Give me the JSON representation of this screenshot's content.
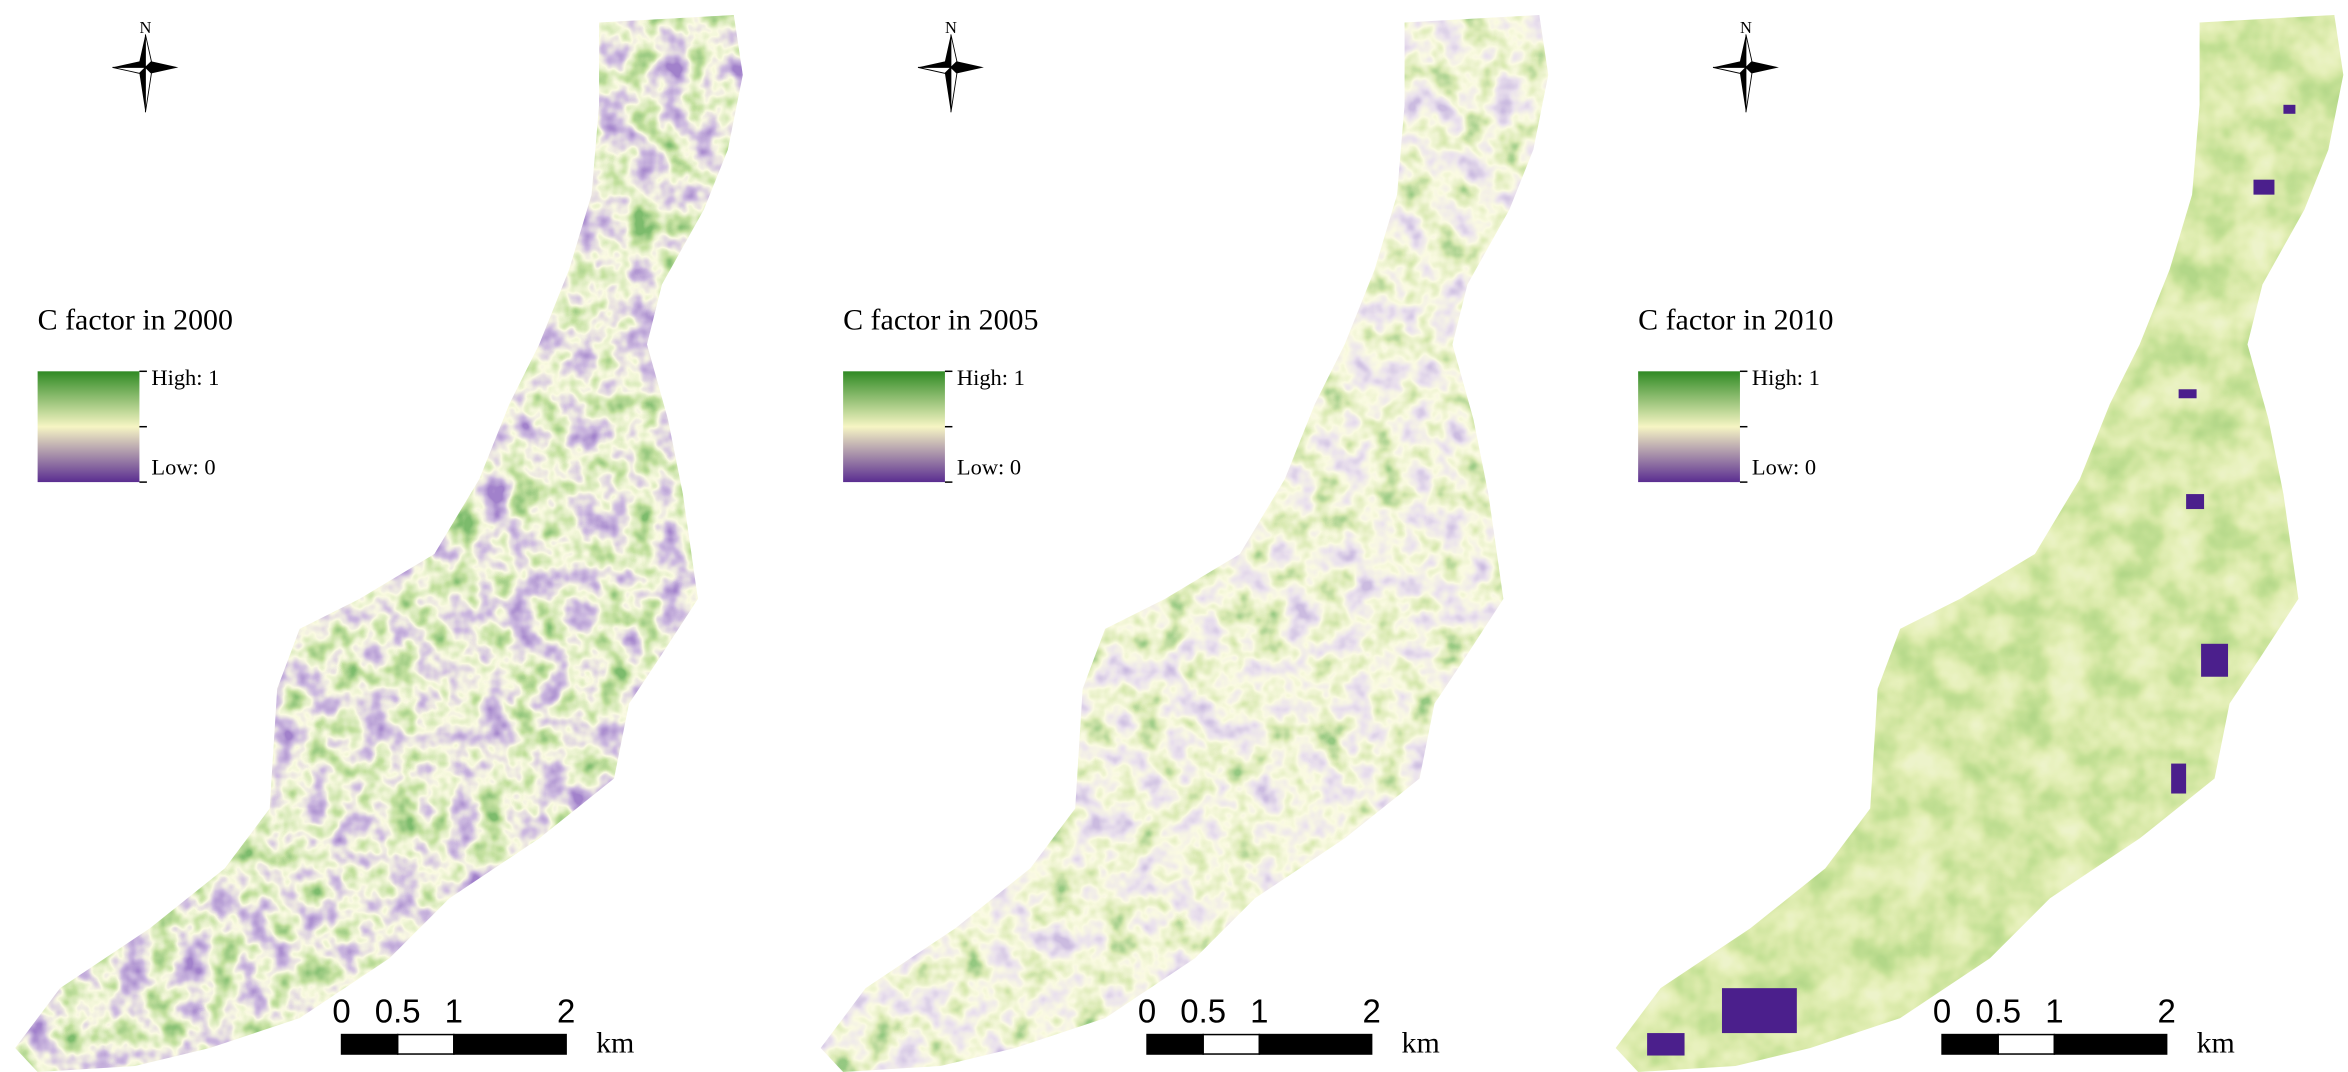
{
  "panels": [
    {
      "north": "N",
      "legend": {
        "title": "C factor in 2000",
        "high": "High: 1",
        "low": "Low: 0"
      },
      "scale_bar": {
        "ticks": [
          0,
          0.5,
          1,
          2
        ],
        "unit": "km"
      }
    },
    {
      "north": "N",
      "legend": {
        "title": "C factor in 2005",
        "high": "High: 1",
        "low": "Low: 0"
      },
      "scale_bar": {
        "ticks": [
          0,
          0.5,
          1,
          2
        ],
        "unit": "km"
      }
    },
    {
      "north": "N",
      "legend": {
        "title": "C factor in 2010",
        "high": "High: 1",
        "low": "Low: 0"
      },
      "scale_bar": {
        "ticks": [
          0,
          0.5,
          1,
          2
        ],
        "unit": "km"
      }
    }
  ]
}
